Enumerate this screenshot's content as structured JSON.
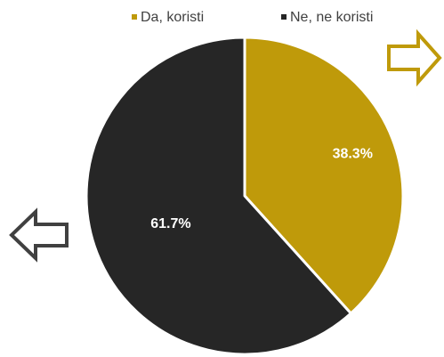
{
  "chart_data": {
    "type": "pie",
    "categories": [
      "Da, koristi",
      "Ne, ne koristi"
    ],
    "values": [
      38.3,
      61.7
    ],
    "value_labels": [
      "38.3%",
      "61.7%"
    ],
    "colors": [
      "#bf9a0a",
      "#262626"
    ],
    "legend": "top"
  }
}
